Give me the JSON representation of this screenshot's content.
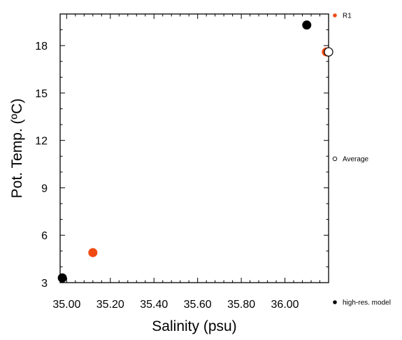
{
  "chart_data": {
    "type": "scatter",
    "xlabel": "Salinity (psu)",
    "ylabel": "Pot. Temp. (ºC)",
    "xlim": [
      34.97,
      36.2
    ],
    "ylim": [
      3,
      20
    ],
    "x_ticks": [
      35.0,
      35.2,
      35.4,
      35.6,
      35.8,
      36.0
    ],
    "x_tick_labels": [
      "35.00",
      "35.20",
      "35.40",
      "35.60",
      "35.80",
      "36.00"
    ],
    "y_ticks": [
      3,
      6,
      9,
      12,
      15,
      18
    ],
    "y_tick_labels": [
      "3",
      "6",
      "9",
      "12",
      "15",
      "18"
    ],
    "grid": false,
    "legend_placement": "right",
    "series": [
      {
        "name": "high-res. model",
        "color": "#000000",
        "marker": "filled-circle",
        "points": [
          {
            "x": 34.98,
            "y": 3.3
          },
          {
            "x": 36.1,
            "y": 19.3
          }
        ]
      },
      {
        "name": "R1",
        "color": "#f04a12",
        "marker": "filled-circle",
        "points": [
          {
            "x": 35.12,
            "y": 4.9
          },
          {
            "x": 36.19,
            "y": 17.6
          }
        ]
      },
      {
        "name": "Average",
        "color": "#000000",
        "marker": "open-circle",
        "points": [
          {
            "x": 36.2,
            "y": 17.6
          }
        ]
      }
    ],
    "legend": [
      {
        "label": "R1",
        "color": "#f04a12",
        "marker": "filled-circle"
      },
      {
        "label": "Average",
        "color": "#000000",
        "marker": "open-circle"
      },
      {
        "label": "high-res. model",
        "color": "#000000",
        "marker": "filled-circle"
      }
    ]
  }
}
